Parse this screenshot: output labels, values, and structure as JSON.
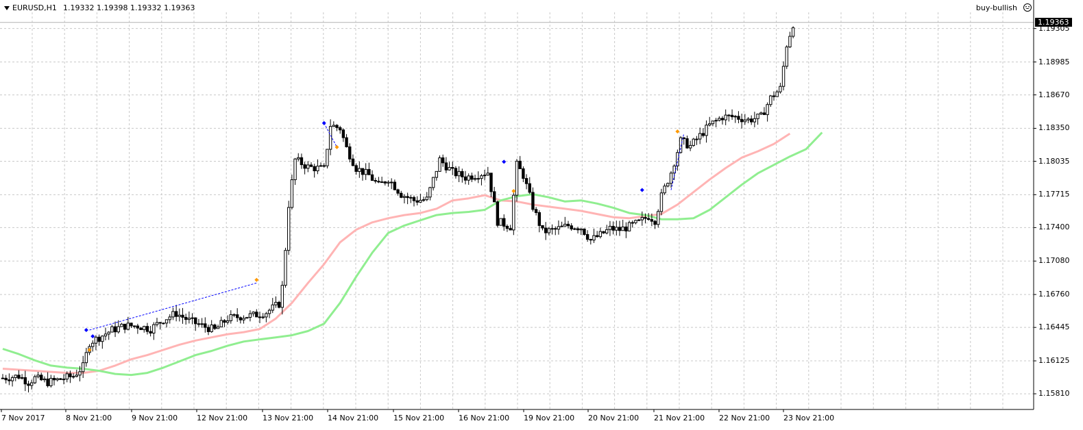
{
  "header": {
    "symbol": "EURUSD,H1",
    "quote": "1.19332 1.19398 1.19332 1.19363"
  },
  "expert": {
    "name": "buy-bullish",
    "icon": "smile-icon"
  },
  "current_price": "1.19363",
  "price_axis": {
    "ticks": [
      "1.19305",
      "1.18985",
      "1.18670",
      "1.18350",
      "1.18035",
      "1.17715",
      "1.17400",
      "1.17080",
      "1.16760",
      "1.16445",
      "1.16125",
      "1.15810"
    ],
    "min": 1.1566,
    "max": 1.1946
  },
  "time_axis": {
    "ticks": [
      "7 Nov 2017",
      "8 Nov 21:00",
      "9 Nov 21:00",
      "12 Nov 21:00",
      "13 Nov 21:00",
      "14 Nov 21:00",
      "15 Nov 21:00",
      "16 Nov 21:00",
      "19 Nov 21:00",
      "20 Nov 21:00",
      "21 Nov 21:00",
      "22 Nov 21:00",
      "23 Nov 21:00"
    ]
  },
  "colors": {
    "background": "#ffffff",
    "grid": "#c8c8c8",
    "candle": "#000000",
    "ma_pink": "#ffb4b4",
    "ma_green": "#90ee90",
    "signal_line": "#0000ff",
    "buy_marker": "#0000ff",
    "exit_marker": "#ff9900"
  },
  "chart_data": {
    "type": "candlestick",
    "x_range": [
      0,
      320
    ],
    "y_range": [
      1.1566,
      1.1946
    ],
    "close_path": [
      [
        0,
        1.1596
      ],
      [
        5,
        1.1598
      ],
      [
        8,
        1.1592
      ],
      [
        10,
        1.1596
      ],
      [
        14,
        1.1592
      ],
      [
        18,
        1.1595
      ],
      [
        22,
        1.1598
      ],
      [
        25,
        1.1607
      ],
      [
        27,
        1.163
      ],
      [
        30,
        1.1635
      ],
      [
        34,
        1.1642
      ],
      [
        38,
        1.1646
      ],
      [
        42,
        1.1646
      ],
      [
        46,
        1.1643
      ],
      [
        50,
        1.1652
      ],
      [
        54,
        1.1658
      ],
      [
        58,
        1.1651
      ],
      [
        62,
        1.1646
      ],
      [
        66,
        1.1642
      ],
      [
        70,
        1.1653
      ],
      [
        74,
        1.1655
      ],
      [
        78,
        1.1656
      ],
      [
        82,
        1.1659
      ],
      [
        86,
        1.1667
      ],
      [
        87,
        1.1683
      ],
      [
        88,
        1.172
      ],
      [
        89,
        1.1762
      ],
      [
        91,
        1.1805
      ],
      [
        95,
        1.1798
      ],
      [
        100,
        1.1796
      ],
      [
        102,
        1.1838
      ],
      [
        105,
        1.1835
      ],
      [
        107,
        1.1816
      ],
      [
        110,
        1.1797
      ],
      [
        114,
        1.179
      ],
      [
        117,
        1.178
      ],
      [
        120,
        1.1787
      ],
      [
        124,
        1.1772
      ],
      [
        128,
        1.1766
      ],
      [
        132,
        1.1767
      ],
      [
        136,
        1.1805
      ],
      [
        140,
        1.1793
      ],
      [
        144,
        1.1788
      ],
      [
        148,
        1.1791
      ],
      [
        151,
        1.1793
      ],
      [
        154,
        1.1746
      ],
      [
        158,
        1.1741
      ],
      [
        160,
        1.18
      ],
      [
        162,
        1.179
      ],
      [
        165,
        1.176
      ],
      [
        168,
        1.1736
      ],
      [
        172,
        1.1738
      ],
      [
        176,
        1.1742
      ],
      [
        180,
        1.174
      ],
      [
        183,
        1.1728
      ],
      [
        186,
        1.1733
      ],
      [
        189,
        1.1739
      ],
      [
        192,
        1.1738
      ],
      [
        195,
        1.1741
      ],
      [
        198,
        1.1745
      ],
      [
        201,
        1.1751
      ],
      [
        203,
        1.1747
      ],
      [
        205,
        1.177
      ],
      [
        208,
        1.1793
      ],
      [
        211,
        1.1823
      ],
      [
        214,
        1.1818
      ],
      [
        217,
        1.1828
      ],
      [
        220,
        1.1838
      ],
      [
        224,
        1.1846
      ],
      [
        228,
        1.1846
      ],
      [
        232,
        1.1843
      ],
      [
        236,
        1.1846
      ],
      [
        239,
        1.1864
      ],
      [
        242,
        1.1873
      ],
      [
        244,
        1.1915
      ],
      [
        246,
        1.1935
      ]
    ],
    "moving_averages": [
      {
        "color": "pink",
        "points": [
          [
            0,
            1.1605
          ],
          [
            5,
            1.1604
          ],
          [
            10,
            1.1603
          ],
          [
            15,
            1.1602
          ],
          [
            20,
            1.1601
          ],
          [
            25,
            1.1601
          ],
          [
            30,
            1.1603
          ],
          [
            35,
            1.1608
          ],
          [
            40,
            1.1614
          ],
          [
            45,
            1.1618
          ],
          [
            50,
            1.1623
          ],
          [
            55,
            1.1628
          ],
          [
            60,
            1.1632
          ],
          [
            65,
            1.1635
          ],
          [
            70,
            1.1638
          ],
          [
            75,
            1.164
          ],
          [
            80,
            1.1643
          ],
          [
            85,
            1.1653
          ],
          [
            90,
            1.1668
          ],
          [
            95,
            1.1687
          ],
          [
            100,
            1.1705
          ],
          [
            105,
            1.1726
          ],
          [
            110,
            1.1738
          ],
          [
            115,
            1.1745
          ],
          [
            120,
            1.1749
          ],
          [
            125,
            1.1752
          ],
          [
            130,
            1.1754
          ],
          [
            135,
            1.1758
          ],
          [
            140,
            1.1766
          ],
          [
            145,
            1.1768
          ],
          [
            150,
            1.1771
          ],
          [
            155,
            1.1766
          ],
          [
            160,
            1.1765
          ],
          [
            165,
            1.1762
          ],
          [
            170,
            1.176
          ],
          [
            175,
            1.1758
          ],
          [
            180,
            1.1756
          ],
          [
            185,
            1.1753
          ],
          [
            190,
            1.175
          ],
          [
            195,
            1.1749
          ],
          [
            200,
            1.1751
          ],
          [
            205,
            1.1753
          ],
          [
            210,
            1.1762
          ],
          [
            215,
            1.1774
          ],
          [
            220,
            1.1786
          ],
          [
            225,
            1.1797
          ],
          [
            230,
            1.1807
          ],
          [
            235,
            1.1813
          ],
          [
            240,
            1.182
          ],
          [
            245,
            1.183
          ]
        ]
      },
      {
        "color": "green",
        "points": [
          [
            0,
            1.1624
          ],
          [
            5,
            1.1619
          ],
          [
            10,
            1.1613
          ],
          [
            15,
            1.1608
          ],
          [
            20,
            1.1606
          ],
          [
            25,
            1.1605
          ],
          [
            30,
            1.1603
          ],
          [
            35,
            1.16
          ],
          [
            40,
            1.1599
          ],
          [
            45,
            1.1601
          ],
          [
            50,
            1.1606
          ],
          [
            55,
            1.1612
          ],
          [
            60,
            1.1618
          ],
          [
            65,
            1.1622
          ],
          [
            70,
            1.1627
          ],
          [
            75,
            1.1631
          ],
          [
            80,
            1.1633
          ],
          [
            85,
            1.1635
          ],
          [
            90,
            1.1637
          ],
          [
            95,
            1.1641
          ],
          [
            100,
            1.1648
          ],
          [
            105,
            1.1668
          ],
          [
            110,
            1.1693
          ],
          [
            115,
            1.1716
          ],
          [
            120,
            1.1735
          ],
          [
            125,
            1.1742
          ],
          [
            130,
            1.1747
          ],
          [
            135,
            1.1752
          ],
          [
            140,
            1.1754
          ],
          [
            145,
            1.1755
          ],
          [
            150,
            1.1757
          ],
          [
            155,
            1.1766
          ],
          [
            160,
            1.177
          ],
          [
            165,
            1.1772
          ],
          [
            170,
            1.1769
          ],
          [
            175,
            1.1765
          ],
          [
            180,
            1.1766
          ],
          [
            185,
            1.1763
          ],
          [
            190,
            1.1759
          ],
          [
            195,
            1.1754
          ],
          [
            200,
            1.1752
          ],
          [
            205,
            1.1748
          ],
          [
            210,
            1.1748
          ],
          [
            215,
            1.1749
          ],
          [
            220,
            1.1757
          ],
          [
            225,
            1.1769
          ],
          [
            230,
            1.1781
          ],
          [
            235,
            1.1792
          ],
          [
            240,
            1.18
          ],
          [
            245,
            1.1808
          ],
          [
            250,
            1.1815
          ],
          [
            255,
            1.1831
          ]
        ]
      }
    ],
    "signal_lines": [
      [
        [
          27,
          1.1642
        ],
        [
          79,
          1.1687
        ]
      ],
      [
        [
          208,
          1.1776
        ],
        [
          212,
          1.183
        ]
      ],
      [
        [
          100,
          1.184
        ],
        [
          104,
          1.1817
        ]
      ]
    ],
    "markers": [
      {
        "type": "buy",
        "x": 26,
        "y": 1.1642
      },
      {
        "type": "buy",
        "x": 28,
        "y": 1.1636
      },
      {
        "type": "exit",
        "x": 27,
        "y": 1.1623
      },
      {
        "type": "exit",
        "x": 79,
        "y": 1.169
      },
      {
        "type": "buy",
        "x": 100,
        "y": 1.184
      },
      {
        "type": "exit",
        "x": 104,
        "y": 1.1817
      },
      {
        "type": "buy",
        "x": 156,
        "y": 1.1803
      },
      {
        "type": "exit",
        "x": 159,
        "y": 1.1775
      },
      {
        "type": "buy",
        "x": 199,
        "y": 1.1776
      },
      {
        "type": "exit",
        "x": 210,
        "y": 1.1832
      }
    ]
  }
}
